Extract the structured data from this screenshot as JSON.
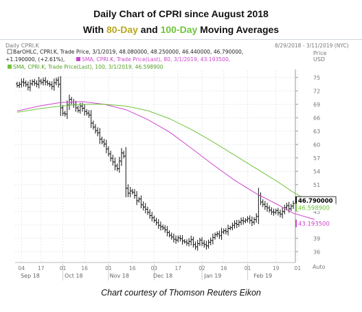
{
  "title": {
    "line1": "Daily Chart of CPRI since August 2018",
    "line2_prefix": "With ",
    "line2_80": "80-Day",
    "line2_mid": " and ",
    "line2_100": "100-Day",
    "line2_suffix": " Moving Averages"
  },
  "caption": "Chart courtesy of Thomson Reuters Eikon",
  "chart_header": {
    "name": "Daily CPRI.K",
    "date_range": "8/29/2018 - 3/11/2019 (NYC)",
    "legend_bar": "BarOHLC, CPRI.K, Trade Price, 3/1/2019, 48.080000, 48.250000, 46.440000, 46.790000,",
    "legend_bar_change": "+1.190000, (+2.61%),",
    "legend_sma80": "SMA, CPRI.K, Trade Price(Last), 80, 3/1/2019, 43.193500,",
    "legend_sma100": "SMA, CPRI.K, Trade Price(Last), 100, 3/1/2019, 46.598900",
    "price_unit_top": "Price",
    "price_unit_bottom": "USD",
    "auto_label": "Auto"
  },
  "chart_data": {
    "type": "ohlc",
    "ylim": [
      34.5,
      76.5
    ],
    "yticks": [
      36,
      39,
      42,
      45,
      48,
      51,
      54,
      57,
      60,
      63,
      66,
      69,
      72,
      75
    ],
    "price_labels": [
      {
        "text": "46.790000",
        "value": 46.79,
        "color": "#000000"
      },
      {
        "text": "46.598900",
        "value": 46.5989,
        "color": "#6ec43a"
      },
      {
        "text": "43.193500",
        "value": 43.1935,
        "color": "#cc44cc"
      }
    ],
    "x_day_ticks": [
      "04",
      "17",
      "01",
      "16",
      "01",
      "16",
      "03",
      "17",
      "02",
      "16",
      "01",
      "19",
      "01"
    ],
    "x_month_labels": [
      "Sep 18",
      "Oct 18",
      "Nov 18",
      "Dec 18",
      "Jan 19",
      "Feb 19"
    ],
    "closes": [
      73.2,
      73.5,
      74.0,
      73.8,
      73.4,
      72.8,
      73.6,
      74.1,
      73.7,
      73.5,
      74.2,
      73.9,
      74.3,
      74.0,
      73.6,
      73.4,
      73.0,
      73.8,
      74.4,
      73.5,
      68.2,
      67.0,
      66.8,
      68.8,
      70.1,
      69.5,
      68.9,
      68.2,
      67.6,
      68.6,
      68.1,
      67.4,
      67.0,
      66.6,
      64.8,
      63.9,
      63.1,
      62.6,
      61.2,
      60.6,
      60.1,
      59.0,
      57.9,
      56.9,
      56.1,
      55.2,
      54.6,
      56.3,
      58.1,
      57.4,
      50.2,
      49.1,
      49.6,
      49.3,
      48.6,
      47.4,
      47.8,
      46.5,
      46.0,
      45.5,
      44.8,
      44.1,
      43.6,
      43.0,
      42.5,
      41.9,
      41.6,
      41.3,
      40.9,
      40.3,
      39.7,
      39.3,
      38.8,
      38.6,
      39.1,
      38.9,
      38.4,
      38.2,
      37.9,
      38.3,
      38.7,
      37.6,
      37.1,
      37.8,
      38.6,
      37.9,
      37.6,
      37.3,
      38.1,
      38.5,
      39.2,
      39.8,
      40.0,
      39.6,
      40.4,
      40.7,
      40.5,
      41.2,
      41.4,
      41.9,
      42.3,
      42.1,
      42.6,
      43.0,
      42.8,
      43.1,
      43.4,
      43.0,
      42.6,
      43.2,
      43.9,
      48.6,
      47.1,
      46.6,
      46.1,
      45.8,
      45.3,
      44.9,
      44.8,
      45.2,
      44.7,
      44.4,
      45.0,
      45.9,
      46.3,
      45.6,
      46.2,
      46.79
    ],
    "series": [
      {
        "name": "SMA 80",
        "color": "#cc44cc",
        "points": [
          [
            0,
            67.5
          ],
          [
            10,
            68.6
          ],
          [
            20,
            69.4
          ],
          [
            30,
            69.6
          ],
          [
            40,
            69.0
          ],
          [
            50,
            67.8
          ],
          [
            60,
            65.6
          ],
          [
            70,
            62.8
          ],
          [
            80,
            59.2
          ],
          [
            90,
            55.5
          ],
          [
            100,
            52.0
          ],
          [
            110,
            49.0
          ],
          [
            120,
            46.5
          ],
          [
            127,
            44.6
          ],
          [
            137,
            43.19
          ]
        ]
      },
      {
        "name": "SMA 100",
        "color": "#6ec43a",
        "points": [
          [
            0,
            67.2
          ],
          [
            10,
            68.0
          ],
          [
            20,
            68.6
          ],
          [
            30,
            69.0
          ],
          [
            40,
            69.0
          ],
          [
            50,
            68.6
          ],
          [
            60,
            67.6
          ],
          [
            70,
            65.8
          ],
          [
            80,
            63.4
          ],
          [
            90,
            60.6
          ],
          [
            100,
            57.6
          ],
          [
            110,
            54.6
          ],
          [
            120,
            51.6
          ],
          [
            127,
            49.3
          ],
          [
            137,
            46.6
          ]
        ]
      }
    ]
  }
}
